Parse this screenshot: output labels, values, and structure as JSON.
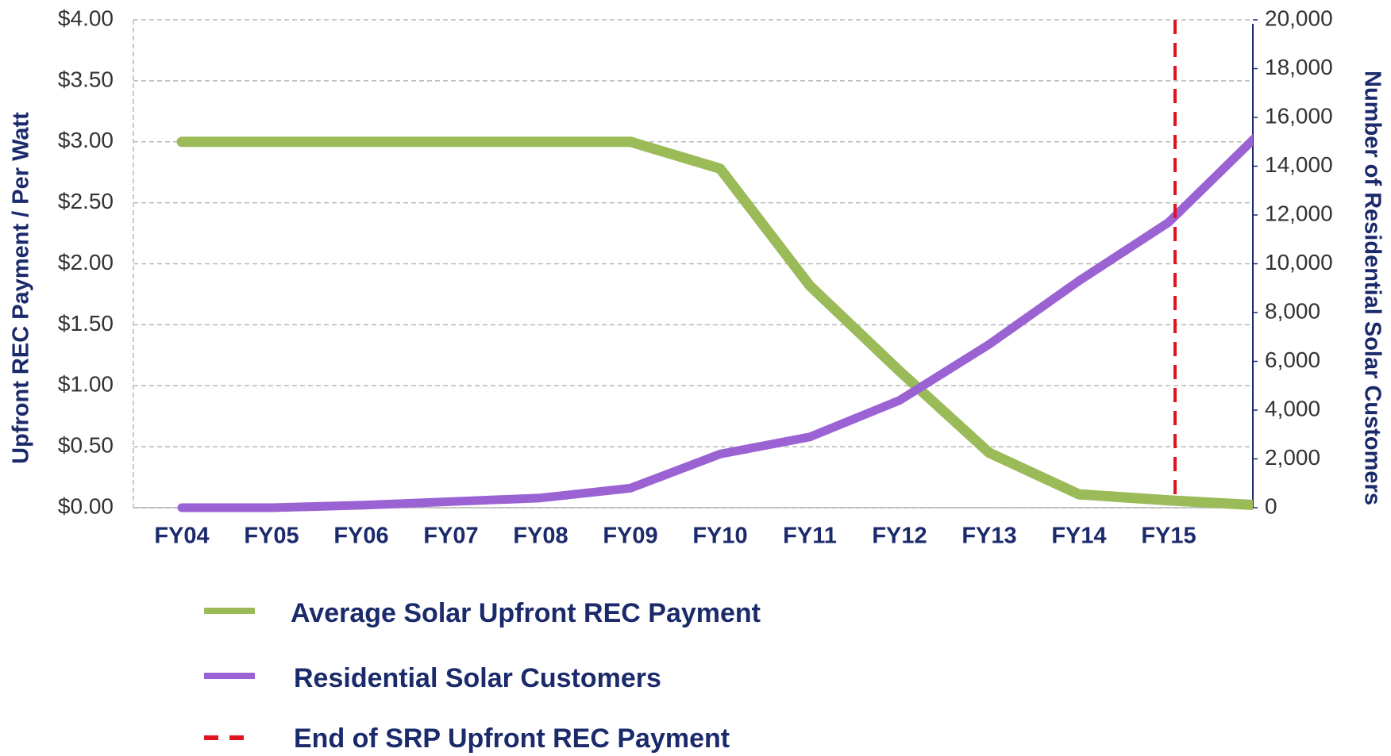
{
  "chart_data": {
    "type": "line",
    "y_label": "Upfront REC Payment / Per Watt",
    "y2_label": "Number of Residential Solar Customers",
    "categories": [
      "FY04",
      "FY05",
      "FY06",
      "FY07",
      "FY08",
      "FY09",
      "FY10",
      "FY11",
      "FY12",
      "FY13",
      "FY14",
      "FY15",
      null
    ],
    "series": [
      {
        "name": "Average Solar Upfront REC Payment",
        "color": "#9bbb59",
        "axis": "y",
        "values": [
          3.0,
          3.0,
          3.0,
          3.0,
          3.0,
          3.0,
          2.78,
          1.82,
          1.12,
          0.45,
          0.11,
          0.06,
          0.02
        ]
      },
      {
        "name": "Residential Solar Customers",
        "color": "#9b62d3",
        "axis": "y2",
        "values": [
          0,
          0,
          100,
          250,
          400,
          800,
          2200,
          2900,
          4400,
          6700,
          9300,
          11700,
          15300
        ]
      }
    ],
    "reference_line": {
      "name": "End of SRP Upfront REC Payment",
      "color": "#e0141e",
      "at": "FY15"
    },
    "ylim": [
      0,
      4
    ],
    "yticks": [
      {
        "value": 0,
        "label": "$0.00"
      },
      {
        "value": 0.5,
        "label": "$0.50"
      },
      {
        "value": 1,
        "label": "$1.00"
      },
      {
        "value": 1.5,
        "label": "$1.50"
      },
      {
        "value": 2,
        "label": "$2.00"
      },
      {
        "value": 2.5,
        "label": "$2.50"
      },
      {
        "value": 3,
        "label": "$3.00"
      },
      {
        "value": 3.5,
        "label": "$3.50"
      },
      {
        "value": 4,
        "label": "$4.00"
      }
    ],
    "y2lim": [
      0,
      20000
    ],
    "y2ticks": [
      0,
      {
        "value": 2000,
        "label": "2,000"
      },
      {
        "value": 4000,
        "label": "4,000"
      },
      {
        "value": 6000,
        "label": "6,000"
      },
      {
        "value": 8000,
        "label": "8,000"
      },
      {
        "value": 10000,
        "label": "10,000"
      },
      {
        "value": 12000,
        "label": "12,000"
      },
      {
        "value": 14000,
        "label": "14,000"
      },
      {
        "value": 16000,
        "label": "16,000"
      },
      {
        "value": 18000,
        "label": "18,000"
      },
      {
        "value": 20000,
        "label": "20,000"
      }
    ],
    "grid": true
  }
}
